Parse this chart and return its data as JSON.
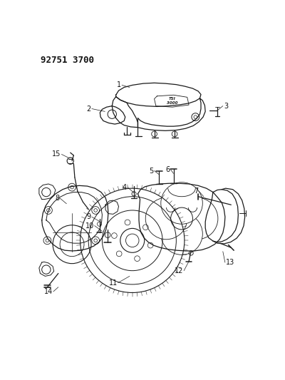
{
  "title": "92751 3700",
  "bg_color": "#ffffff",
  "line_color": "#1a1a1a",
  "text_color": "#111111",
  "fig_width": 4.0,
  "fig_height": 5.33,
  "dpi": 100
}
